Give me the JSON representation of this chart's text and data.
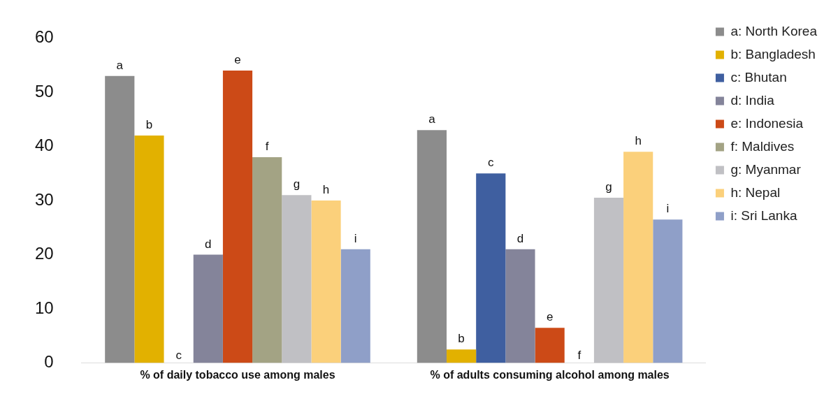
{
  "chart_data": {
    "type": "bar",
    "categories": [
      "% of daily tobacco use among males",
      "% of adults consuming alcohol among males"
    ],
    "series": [
      {
        "name": "a: North Korea",
        "color": "#8c8c8c",
        "values": [
          53,
          43
        ],
        "value_labels": [
          "a",
          "a"
        ]
      },
      {
        "name": "b: Bangladesh",
        "color": "#e2b100",
        "values": [
          42,
          2.5
        ],
        "value_labels": [
          "b",
          "b"
        ]
      },
      {
        "name": "c: Bhutan",
        "color": "#3f5fa0",
        "values": [
          null,
          35
        ],
        "value_labels": [
          null,
          "c"
        ]
      },
      {
        "name": "d: India",
        "color": "#84849a",
        "values": [
          20,
          21
        ],
        "value_labels": [
          "d",
          "d"
        ]
      },
      {
        "name": "e: Indonesia",
        "color": "#cc4a17",
        "values": [
          54,
          6.5
        ],
        "value_labels": [
          "e",
          "e"
        ]
      },
      {
        "name": "f: Maldives",
        "color": "#a3a384",
        "values": [
          38,
          null
        ],
        "value_labels": [
          "f",
          null
        ]
      },
      {
        "name": "g: Myanmar",
        "color": "#c0c0c4",
        "values": [
          31,
          30.5
        ],
        "value_labels": [
          "g",
          "g"
        ]
      },
      {
        "name": "h: Nepal",
        "color": "#fbd07b",
        "values": [
          30,
          39
        ],
        "value_labels": [
          "h",
          "h"
        ]
      },
      {
        "name": "i: Sri Lanka",
        "color": "#8f9fc8",
        "values": [
          21,
          26.5
        ],
        "value_labels": [
          "i",
          "i"
        ]
      }
    ],
    "annotations": [
      "c",
      "f"
    ],
    "ylim": [
      0,
      60
    ],
    "yticks": [
      0,
      10,
      20,
      30,
      40,
      50,
      60
    ],
    "grid": false,
    "legend": "right"
  }
}
